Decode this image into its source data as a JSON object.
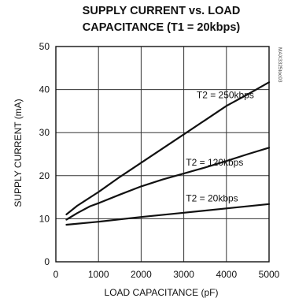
{
  "chart_data": {
    "type": "line",
    "title_lines": [
      "SUPPLY CURRENT vs. LOAD",
      "CAPACITANCE (T1 = 20kbps)"
    ],
    "xlabel": "LOAD CAPACITANCE (pF)",
    "ylabel": "SUPPLY CURRENT (mA)",
    "xlim": [
      0,
      5000
    ],
    "ylim": [
      0,
      50
    ],
    "x_ticks": [
      "0",
      "1000",
      "2000",
      "3000",
      "4000",
      "5000"
    ],
    "y_ticks": [
      "0",
      "10",
      "20",
      "30",
      "40",
      "50"
    ],
    "x_tick_values": [
      0,
      1000,
      2000,
      3000,
      4000,
      5000
    ],
    "y_tick_values": [
      0,
      10,
      20,
      30,
      40,
      50
    ],
    "grid": true,
    "legend": "none",
    "side_label": "MAX3325toc03",
    "series": [
      {
        "name": "T2 = 250kbps",
        "label_pos": [
          3300,
          38
        ],
        "x": [
          250,
          500,
          1000,
          1500,
          2000,
          2500,
          3000,
          3500,
          4000,
          4500,
          5000
        ],
        "y": [
          11,
          13,
          16.2,
          19.7,
          23,
          26.3,
          29.6,
          32.9,
          36.2,
          38.9,
          41.7
        ]
      },
      {
        "name": "T2 = 120kbps",
        "label_pos": [
          3050,
          22.3
        ],
        "x": [
          250,
          500,
          800,
          1000,
          1500,
          2000,
          2500,
          3000,
          3500,
          4000,
          4500,
          5000
        ],
        "y": [
          9.8,
          11.3,
          12.9,
          13.6,
          15.6,
          17.5,
          19.1,
          20.5,
          21.9,
          23.4,
          25,
          26.5
        ]
      },
      {
        "name": "T2 = 20kbps",
        "label_pos": [
          3050,
          14
        ],
        "x": [
          250,
          1000,
          2000,
          3000,
          4000,
          5000
        ],
        "y": [
          8.6,
          9.3,
          10.4,
          11.4,
          12.4,
          13.4
        ]
      }
    ]
  },
  "colors": {
    "background": "#ffffff",
    "curve": "#111111",
    "grid": "#333333",
    "axis": "#111111"
  }
}
